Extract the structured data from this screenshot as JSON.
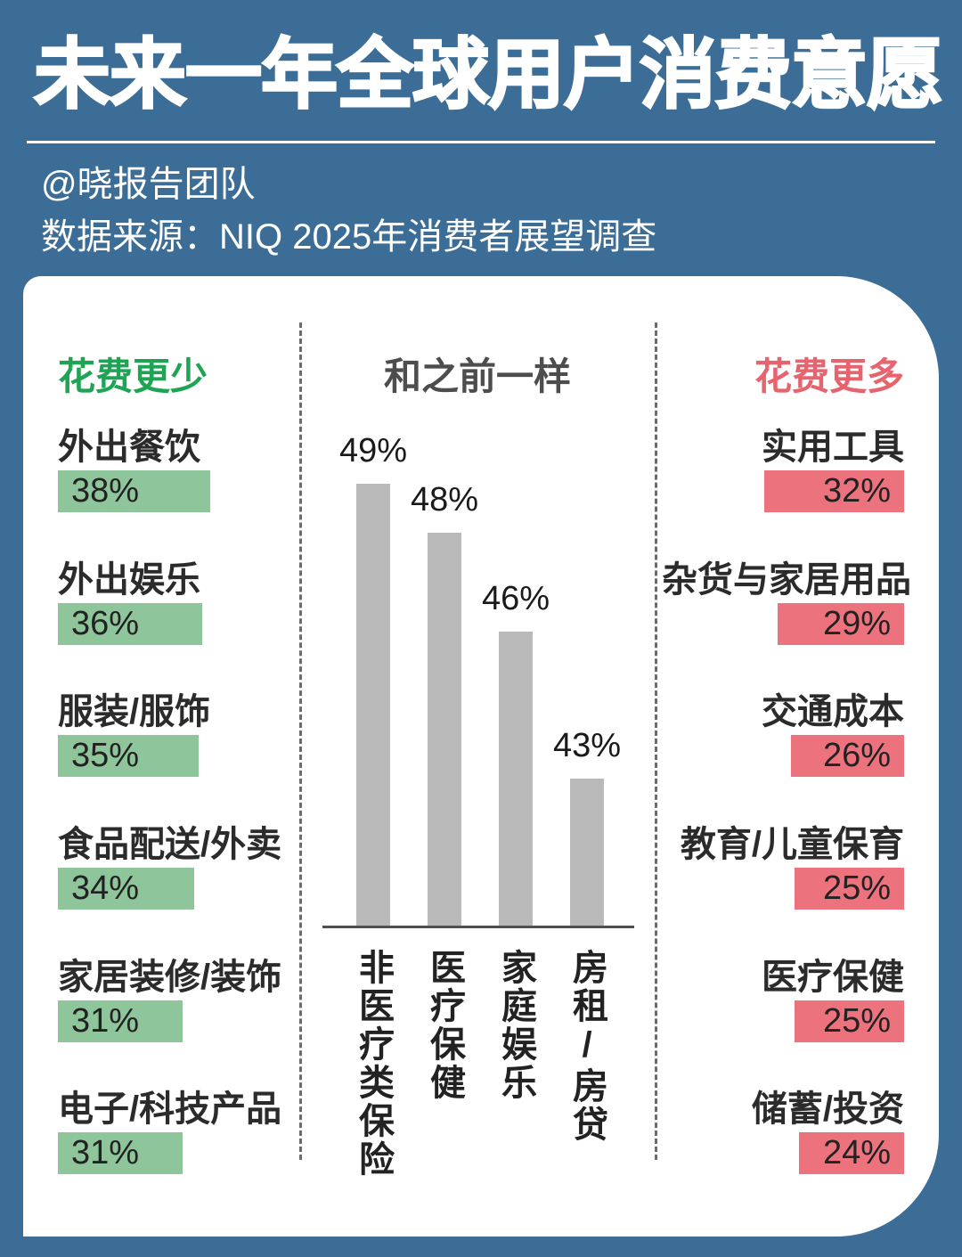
{
  "header": {
    "title": "未来一年全球用户消费意愿",
    "byline": "@晓报告团队",
    "source": "数据来源：NIQ 2025年消费者展望调查"
  },
  "chart_data": {
    "type": "bar",
    "title": "未来一年全球用户消费意愿",
    "unit": "%",
    "legend_position": "none",
    "grid": false,
    "groups": [
      {
        "id": "spend-less",
        "title": "花费更少",
        "orientation": "horizontal",
        "title_color": "#1FA355",
        "bar_color": "#8FC59A",
        "items": [
          {
            "label": "外出餐饮",
            "value": 38,
            "display": "38%"
          },
          {
            "label": "外出娱乐",
            "value": 36,
            "display": "36%"
          },
          {
            "label": "服装/服饰",
            "value": 35,
            "display": "35%"
          },
          {
            "label": "食品配送/外卖",
            "value": 34,
            "display": "34%"
          },
          {
            "label": "家居装修/装饰",
            "value": 31,
            "display": "31%"
          },
          {
            "label": "电子/科技产品",
            "value": 31,
            "display": "31%"
          }
        ]
      },
      {
        "id": "same-as-before",
        "title": "和之前一样",
        "orientation": "vertical",
        "title_color": "#4D4D4D",
        "bar_color": "#B9B9B9",
        "items": [
          {
            "label": "非医疗类保险",
            "value": 49,
            "display": "49%"
          },
          {
            "label": "医疗保健",
            "value": 48,
            "display": "48%"
          },
          {
            "label": "家庭娱乐",
            "value": 46,
            "display": "46%"
          },
          {
            "label": "房租/房贷",
            "value": 43,
            "display": "43%"
          }
        ]
      },
      {
        "id": "spend-more",
        "title": "花费更多",
        "orientation": "horizontal",
        "title_color": "#E5646E",
        "bar_color": "#EC737E",
        "items": [
          {
            "label": "实用工具",
            "value": 32,
            "display": "32%"
          },
          {
            "label": "杂货与家居用品",
            "value": 29,
            "display": "29%"
          },
          {
            "label": "交通成本",
            "value": 26,
            "display": "26%"
          },
          {
            "label": "教育/儿童保育",
            "value": 25,
            "display": "25%"
          },
          {
            "label": "医疗保健",
            "value": 25,
            "display": "25%"
          },
          {
            "label": "储蓄/投资",
            "value": 24,
            "display": "24%"
          }
        ]
      }
    ]
  },
  "colors": {
    "background": "#3C6D96",
    "card": "#ffffff",
    "axis": "#4f4f4f",
    "dashed_divider": "#6b6b6b"
  }
}
